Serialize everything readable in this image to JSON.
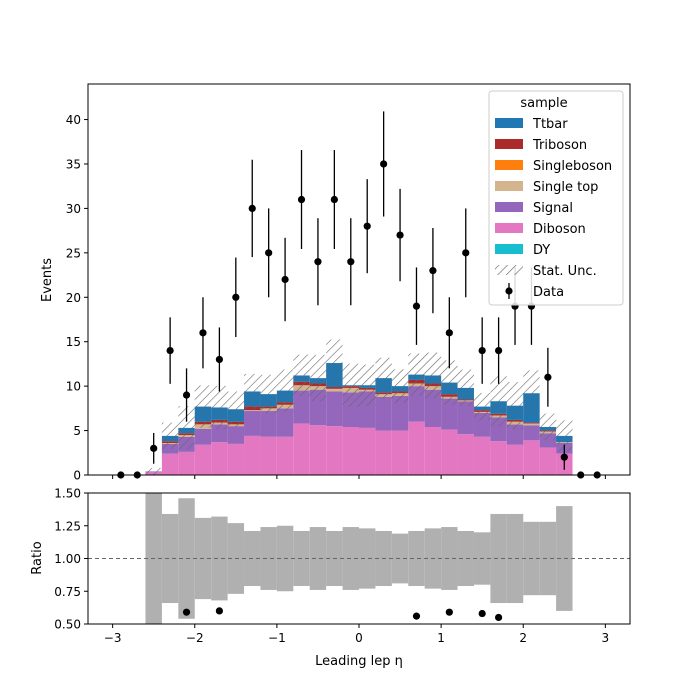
{
  "chart_data": [
    {
      "panel": "main",
      "type": "bar",
      "stacked": true,
      "xlabel": "",
      "ylabel": "Events",
      "xlim": [
        -3.3,
        3.3
      ],
      "ylim": [
        0,
        44
      ],
      "xticks": [
        -3,
        -2,
        -1,
        0,
        1,
        2,
        3
      ],
      "yticks": [
        0,
        5,
        10,
        15,
        20,
        25,
        30,
        35,
        40
      ],
      "bin_edges": [
        -2.6,
        -2.4,
        -2.2,
        -2.0,
        -1.8,
        -1.6,
        -1.4,
        -1.2,
        -1.0,
        -0.8,
        -0.6,
        -0.4,
        -0.2,
        0.0,
        0.2,
        0.4,
        0.6,
        0.8,
        1.0,
        1.2,
        1.4,
        1.6,
        1.8,
        2.0,
        2.2,
        2.4,
        2.6
      ],
      "series": [
        {
          "name": "Diboson",
          "color": "#e377c2",
          "values": [
            0.3,
            2.4,
            2.6,
            3.4,
            3.7,
            3.5,
            4.4,
            4.3,
            4.3,
            5.8,
            5.6,
            5.5,
            5.4,
            5.3,
            5.0,
            5.0,
            6.0,
            5.4,
            5.1,
            4.6,
            4.3,
            3.8,
            3.4,
            3.9,
            3.1,
            2.4
          ]
        },
        {
          "name": "Signal",
          "color": "#9467bd",
          "values": [
            0.1,
            1.1,
            1.7,
            1.8,
            2.0,
            2.0,
            2.8,
            2.9,
            3.2,
            3.7,
            4.0,
            3.9,
            3.9,
            4.1,
            3.8,
            3.9,
            4.0,
            4.2,
            3.5,
            3.7,
            2.7,
            2.7,
            2.3,
            1.7,
            1.6,
            1.2
          ]
        },
        {
          "name": "Single top",
          "color": "#d4b48c",
          "values": [
            0.0,
            0.1,
            0.2,
            0.5,
            0.2,
            0.2,
            0.1,
            0.3,
            0.4,
            0.6,
            0.4,
            0.3,
            0.5,
            0.2,
            0.3,
            0.3,
            0.3,
            0.4,
            0.2,
            0.1,
            0.1,
            0.2,
            0.3,
            0.2,
            0.2,
            0.1
          ]
        },
        {
          "name": "Singleboson",
          "color": "#ff7f0e",
          "values": [
            0.0,
            0.0,
            0.0,
            0.0,
            0.0,
            0.0,
            0.0,
            0.0,
            0.0,
            0.0,
            0.0,
            0.0,
            0.0,
            0.0,
            0.0,
            0.0,
            0.0,
            0.0,
            0.0,
            0.0,
            0.0,
            0.0,
            0.0,
            0.0,
            0.0,
            0.0
          ]
        },
        {
          "name": "Triboson",
          "color": "#ab2b2b",
          "values": [
            0.0,
            0.2,
            0.2,
            0.3,
            0.3,
            0.3,
            0.4,
            0.2,
            0.3,
            0.4,
            0.3,
            0.2,
            0.2,
            0.2,
            0.2,
            0.2,
            0.4,
            0.3,
            0.3,
            0.1,
            0.2,
            0.2,
            0.2,
            0.1,
            0.1,
            0.0
          ]
        },
        {
          "name": "Ttbar",
          "color": "#1f77b4",
          "values": [
            0.0,
            0.6,
            0.6,
            1.7,
            1.4,
            1.4,
            1.7,
            1.4,
            1.3,
            0.7,
            0.6,
            2.7,
            0.1,
            0.3,
            1.6,
            0.6,
            0.6,
            0.9,
            1.3,
            1.3,
            0.4,
            1.4,
            1.6,
            3.3,
            0.4,
            0.7
          ]
        },
        {
          "name": "DY",
          "color": "#17becf",
          "values": [
            0.0,
            0.0,
            0.0,
            0.0,
            0.0,
            0.0,
            0.0,
            0.0,
            0.0,
            0.0,
            0.0,
            0.0,
            0.0,
            0.0,
            0.0,
            0.0,
            0.0,
            0.0,
            0.0,
            0.0,
            0.0,
            0.0,
            0.0,
            0.0,
            0.0,
            0.0
          ]
        }
      ],
      "stat_unc_rel": [
        1.0,
        0.34,
        0.46,
        0.31,
        0.32,
        0.27,
        0.21,
        0.24,
        0.25,
        0.21,
        0.24,
        0.21,
        0.24,
        0.23,
        0.21,
        0.19,
        0.21,
        0.23,
        0.24,
        0.21,
        0.2,
        0.34,
        0.34,
        0.28,
        0.28,
        0.4
      ],
      "data_points": {
        "name": "Data",
        "x": [
          -2.9,
          -2.7,
          -2.5,
          -2.3,
          -2.1,
          -1.9,
          -1.7,
          -1.5,
          -1.3,
          -1.1,
          -0.9,
          -0.7,
          -0.5,
          -0.3,
          -0.1,
          0.1,
          0.3,
          0.5,
          0.7,
          0.9,
          1.1,
          1.3,
          1.5,
          1.7,
          1.9,
          2.1,
          2.3,
          2.5,
          2.7,
          2.9
        ],
        "y": [
          0,
          0,
          3,
          14,
          9,
          16,
          13,
          20,
          30,
          25,
          22,
          31,
          24,
          31,
          24,
          28,
          35,
          27,
          19,
          23,
          16,
          25,
          14,
          14,
          19,
          19,
          11,
          2,
          0,
          0
        ]
      },
      "legend": {
        "title": "sample",
        "position": "upper-right",
        "entries": [
          {
            "label": "Ttbar",
            "kind": "patch",
            "color": "#1f77b4"
          },
          {
            "label": "Triboson",
            "kind": "patch",
            "color": "#ab2b2b"
          },
          {
            "label": "Singleboson",
            "kind": "patch",
            "color": "#ff7f0e"
          },
          {
            "label": "Single top",
            "kind": "patch",
            "color": "#d4b48c"
          },
          {
            "label": "Signal",
            "kind": "patch",
            "color": "#9467bd"
          },
          {
            "label": "Diboson",
            "kind": "patch",
            "color": "#e377c2"
          },
          {
            "label": "DY",
            "kind": "patch",
            "color": "#17becf"
          },
          {
            "label": "Stat. Unc.",
            "kind": "hatch",
            "color": "#555555"
          },
          {
            "label": "Data",
            "kind": "marker",
            "color": "#000000"
          }
        ]
      }
    },
    {
      "panel": "ratio",
      "type": "scatter",
      "xlabel": "Leading lep η",
      "ylabel": "Ratio",
      "xlim": [
        -3.3,
        3.3
      ],
      "ylim": [
        0.5,
        1.5
      ],
      "xticks": [
        -3,
        -2,
        -1,
        0,
        1,
        2,
        3
      ],
      "yticks": [
        "0.50",
        "0.75",
        "1.00",
        "1.25",
        "1.50"
      ],
      "reference_line": 1.0,
      "band_color": "#b0b0b0",
      "ratio_points": {
        "x": [
          -2.1,
          -1.7,
          0.7,
          1.1,
          1.5,
          1.7
        ],
        "y": [
          0.59,
          0.6,
          0.56,
          0.59,
          0.58,
          0.55
        ]
      }
    }
  ]
}
